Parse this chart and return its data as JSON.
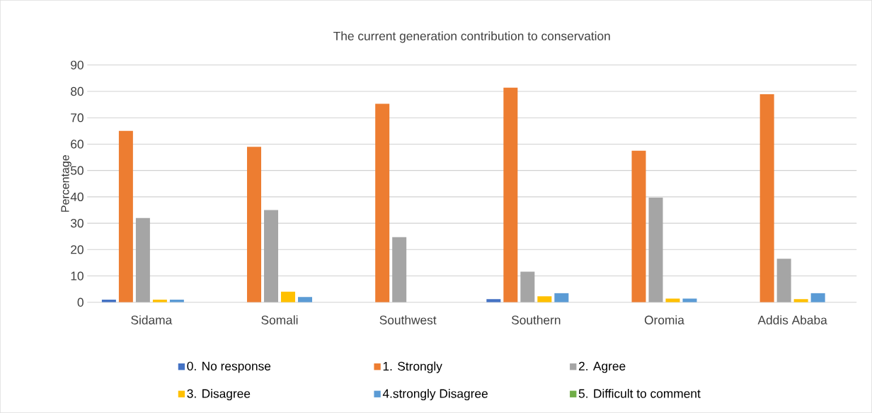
{
  "chart_data": {
    "type": "bar",
    "title": "The current generation contribution to conservation",
    "ylabel": "Percentage",
    "categories": [
      "Sidama",
      "Somali",
      "Southwest",
      "Southern",
      "Oromia",
      "Addis Ababa"
    ],
    "series": [
      {
        "name": "0. No response",
        "color": "#4472c4",
        "values": [
          1,
          0,
          0,
          1.2,
          0,
          0
        ]
      },
      {
        "name": "1. Strongly",
        "color": "#ed7d31",
        "values": [
          65,
          59,
          75.3,
          81.4,
          57.5,
          78.9
        ]
      },
      {
        "name": "2. Agree",
        "color": "#a5a5a5",
        "values": [
          32,
          35,
          24.7,
          11.6,
          39.7,
          16.5
        ]
      },
      {
        "name": "3. Disagree",
        "color": "#ffc000",
        "values": [
          1,
          4,
          0,
          2.3,
          1.4,
          1.2
        ]
      },
      {
        "name": "4.strongly Disagree",
        "color": "#5b9bd5",
        "values": [
          1,
          2,
          0,
          3.5,
          1.4,
          3.5
        ]
      },
      {
        "name": "5. Difficult to comment",
        "color": "#70ad47",
        "values": [
          0,
          0,
          0,
          0,
          0,
          0
        ]
      }
    ],
    "ylim": [
      0,
      90
    ],
    "yticks": [
      0,
      10,
      20,
      30,
      40,
      50,
      60,
      70,
      80,
      90
    ],
    "grid": "y",
    "legend": "bottom"
  }
}
